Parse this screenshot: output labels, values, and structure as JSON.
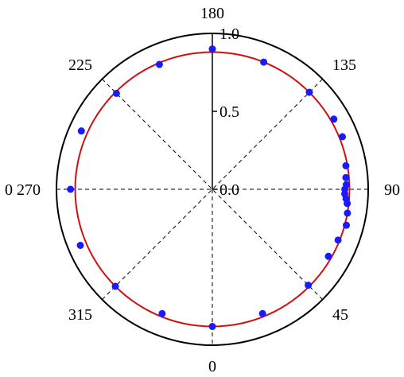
{
  "chart_data": {
    "type": "scatter",
    "coordinate_system": "polar",
    "angle_unit": "degrees",
    "angle_zero_direction": "bottom",
    "angle_direction": "counterclockwise",
    "angle_ticks": [
      {
        "angle": 0,
        "label": "0"
      },
      {
        "angle": 45,
        "label": "45"
      },
      {
        "angle": 90,
        "label": "90"
      },
      {
        "angle": 135,
        "label": "135"
      },
      {
        "angle": 180,
        "label": "180"
      },
      {
        "angle": 225,
        "label": "225"
      },
      {
        "angle": 270,
        "label": "0 270"
      },
      {
        "angle": 315,
        "label": "315"
      }
    ],
    "radial_axis": {
      "range": [
        0,
        1.0
      ],
      "ticks": [
        {
          "value": 0.0,
          "label": "0.0"
        },
        {
          "value": 0.5,
          "label": "0.5"
        },
        {
          "value": 1.0,
          "label": "1.0"
        }
      ]
    },
    "grid": true,
    "series": [
      {
        "kind": "points",
        "color": "#1a1aff",
        "points": [
          {
            "angle": 0,
            "r": 0.88
          },
          {
            "angle": 22,
            "r": 0.86
          },
          {
            "angle": 45,
            "r": 0.87
          },
          {
            "angle": 60,
            "r": 0.86
          },
          {
            "angle": 68,
            "r": 0.87
          },
          {
            "angle": 75,
            "r": 0.89
          },
          {
            "angle": 80,
            "r": 0.88
          },
          {
            "angle": 84,
            "r": 0.87
          },
          {
            "angle": 86,
            "r": 0.86
          },
          {
            "angle": 88,
            "r": 0.85
          },
          {
            "angle": 90,
            "r": 0.85
          },
          {
            "angle": 92,
            "r": 0.86
          },
          {
            "angle": 95,
            "r": 0.86
          },
          {
            "angle": 100,
            "r": 0.87
          },
          {
            "angle": 112,
            "r": 0.9
          },
          {
            "angle": 120,
            "r": 0.9
          },
          {
            "angle": 135,
            "r": 0.88
          },
          {
            "angle": 158,
            "r": 0.88
          },
          {
            "angle": 180,
            "r": 0.9
          },
          {
            "angle": 203,
            "r": 0.87
          },
          {
            "angle": 225,
            "r": 0.87
          },
          {
            "angle": 246,
            "r": 0.92
          },
          {
            "angle": 270,
            "r": 0.91
          },
          {
            "angle": 293,
            "r": 0.92
          },
          {
            "angle": 315,
            "r": 0.88
          },
          {
            "angle": 338,
            "r": 0.86
          }
        ]
      },
      {
        "kind": "curve",
        "color": "#cc1111",
        "r": 0.88
      }
    ]
  }
}
